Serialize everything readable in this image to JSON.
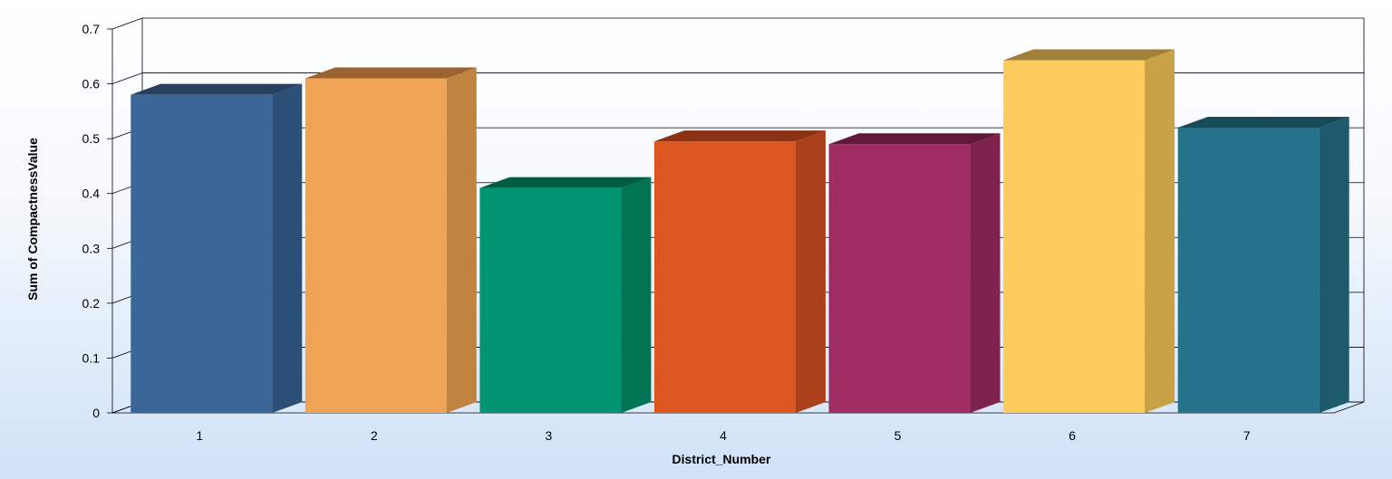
{
  "chart_data": {
    "type": "bar",
    "style": "3d-column",
    "title": "",
    "xlabel": "District_Number",
    "ylabel": "Sum of CompactnessValue",
    "categories": [
      "1",
      "2",
      "3",
      "4",
      "5",
      "6",
      "7"
    ],
    "values": [
      0.58,
      0.61,
      0.41,
      0.495,
      0.49,
      0.643,
      0.52
    ],
    "colors": [
      "#3b6698",
      "#efa354",
      "#019470",
      "#dc5720",
      "#a02d62",
      "#fccb5e",
      "#26728a"
    ],
    "side_colors": [
      "#2c4f77",
      "#c08340",
      "#017553",
      "#ac401a",
      "#7d234e",
      "#c9a246",
      "#1d5a6b"
    ],
    "top_colors": [
      "#27405f",
      "#9a6330",
      "#015c42",
      "#8a3213",
      "#62183a",
      "#a1803a",
      "#174a58"
    ],
    "ylim": [
      0,
      0.7
    ],
    "yticks": [
      "0",
      "0.1",
      "0.2",
      "0.3",
      "0.4",
      "0.5",
      "0.6",
      "0.7"
    ],
    "grid": true,
    "legend": "none"
  }
}
